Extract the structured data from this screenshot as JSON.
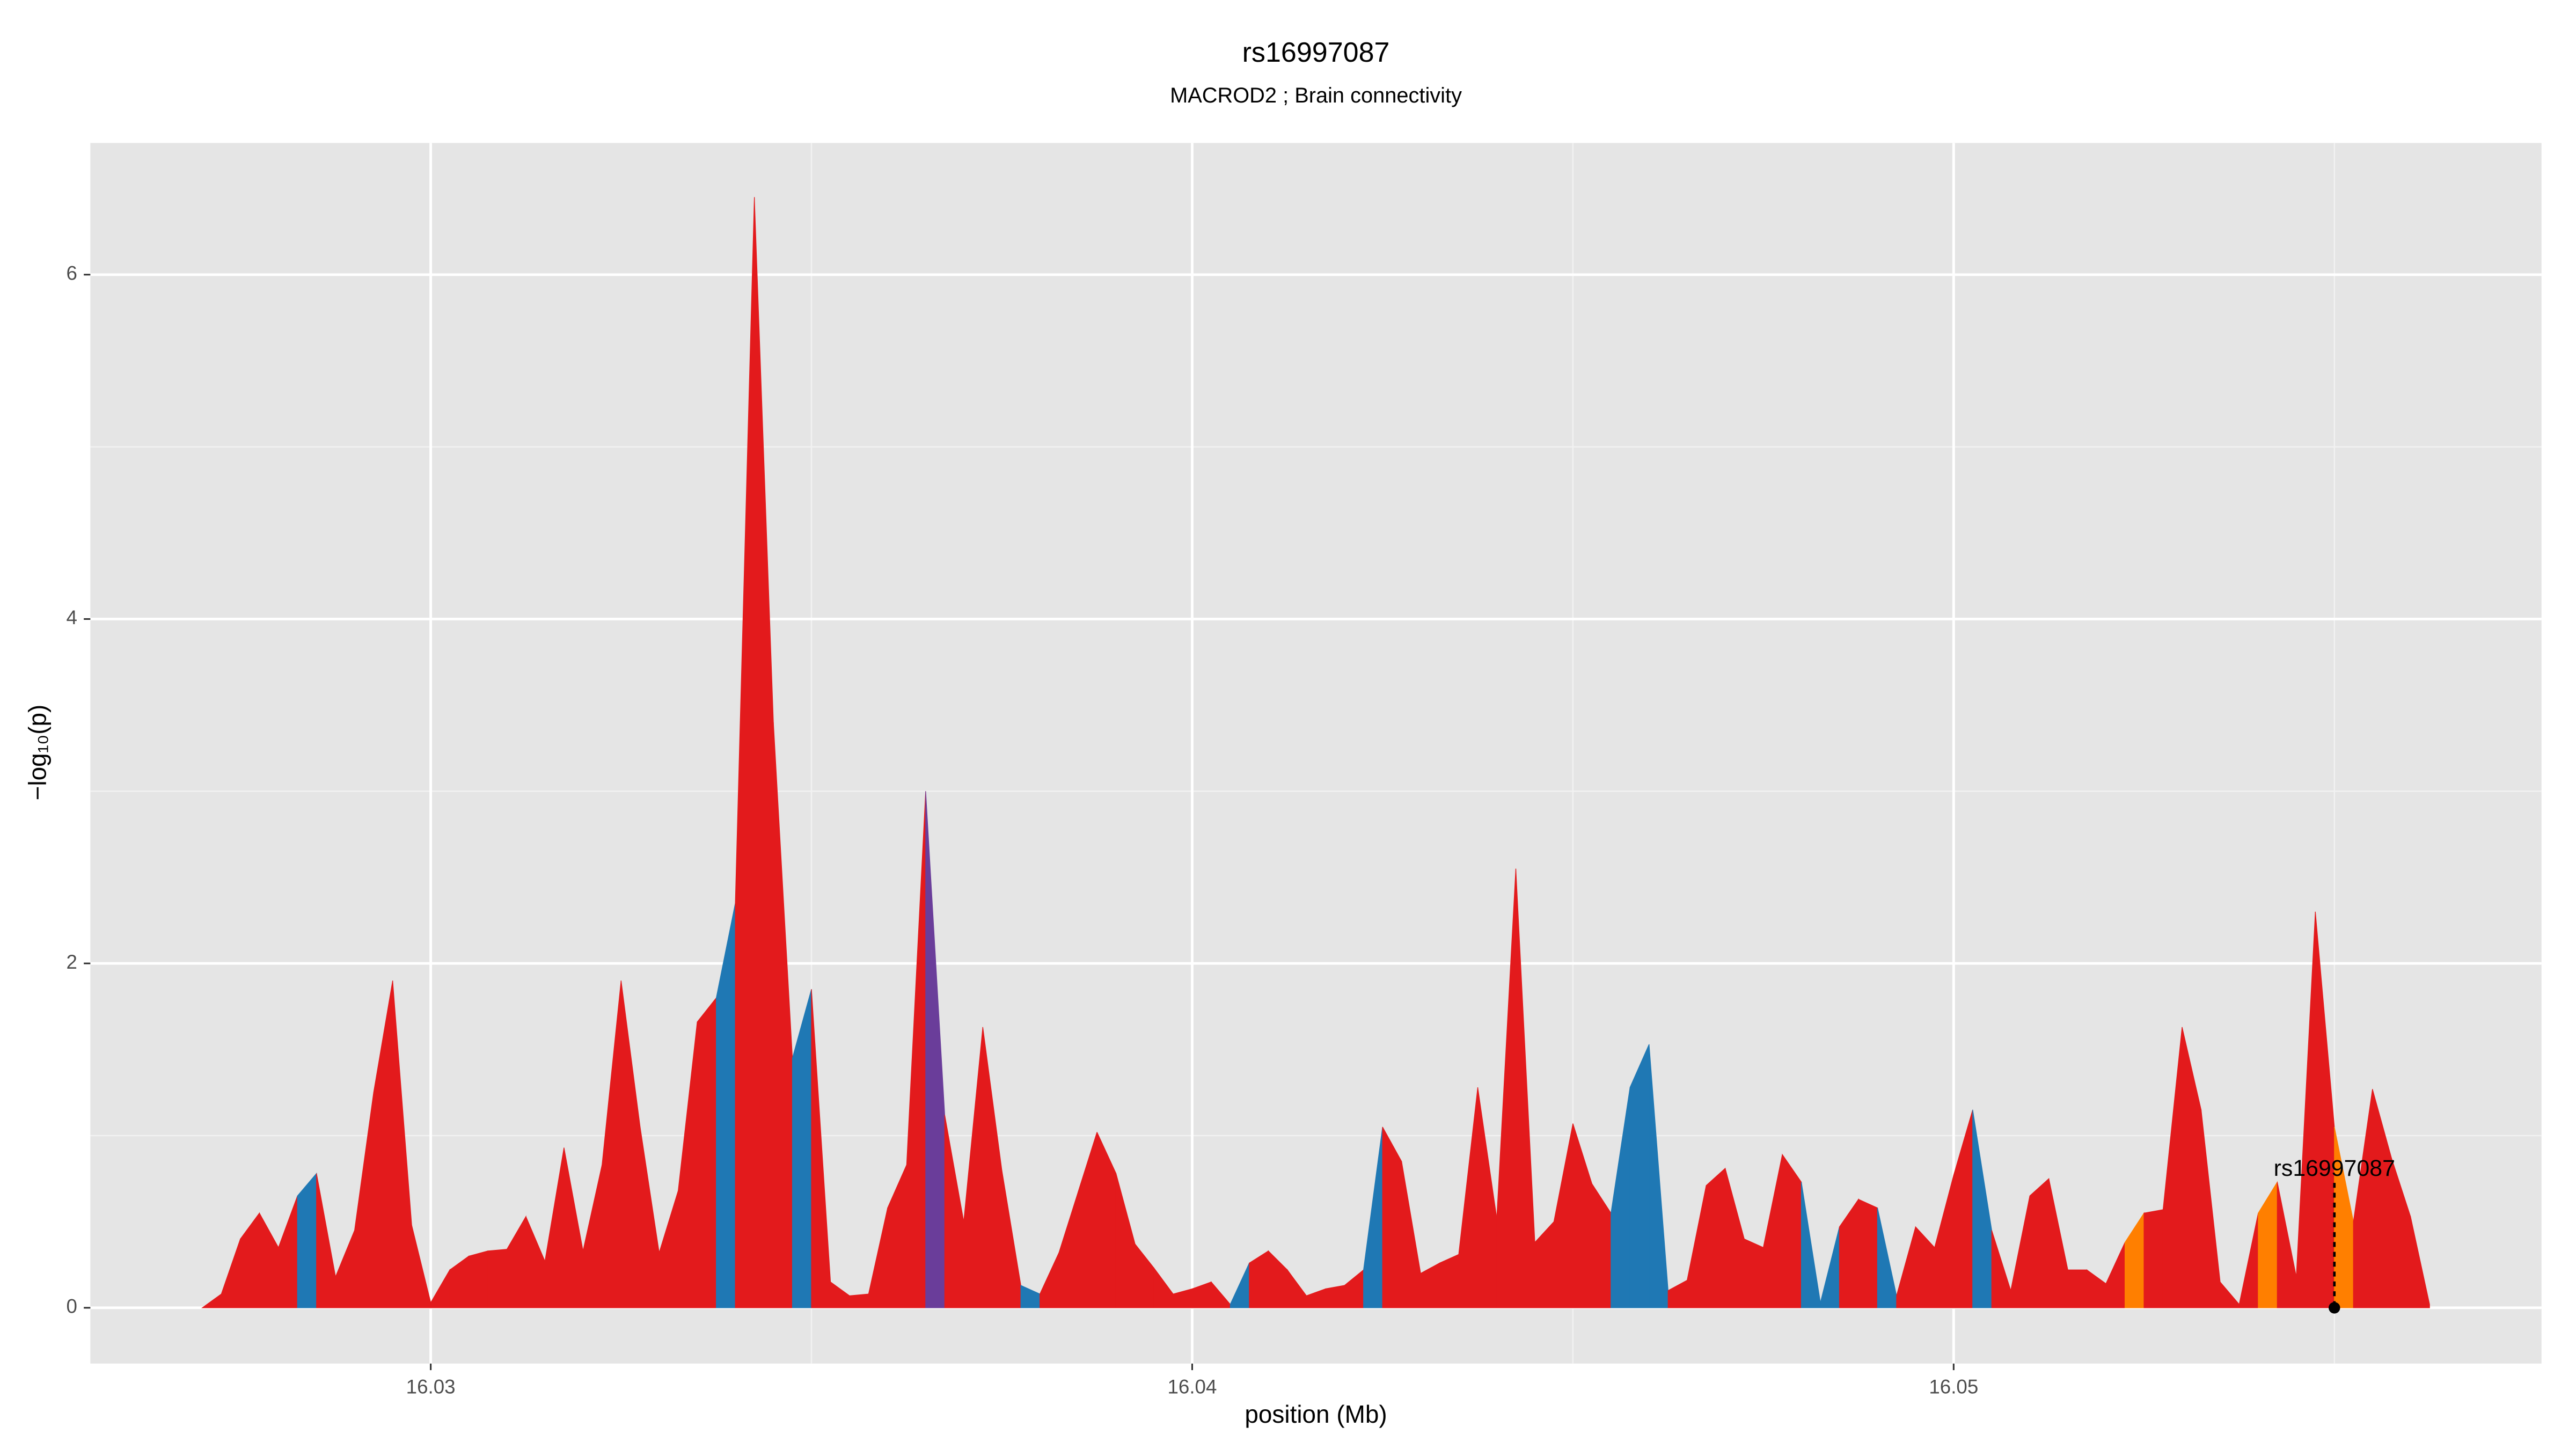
{
  "chart_data": {
    "type": "area",
    "title": "rs16997087",
    "subtitle": "MACROD2 ; Brain connectivity",
    "x_label": "position (Mb)",
    "y_label": "−log₁₀(p)",
    "x": [
      16.027,
      16.02725,
      16.0275,
      16.02775,
      16.028,
      16.02825,
      16.0285,
      16.02875,
      16.029,
      16.02925,
      16.0295,
      16.02975,
      16.03,
      16.03025,
      16.0305,
      16.03075,
      16.031,
      16.03125,
      16.0315,
      16.03175,
      16.032,
      16.03225,
      16.0325,
      16.03275,
      16.033,
      16.03325,
      16.0335,
      16.03375,
      16.034,
      16.03425,
      16.0345,
      16.03475,
      16.035,
      16.03525,
      16.0355,
      16.03575,
      16.036,
      16.03625,
      16.0365,
      16.03675,
      16.037,
      16.03725,
      16.0375,
      16.03775,
      16.038,
      16.03825,
      16.0385,
      16.03875,
      16.039,
      16.03925,
      16.0395,
      16.03975,
      16.04,
      16.04025,
      16.0405,
      16.04075,
      16.041,
      16.04125,
      16.0415,
      16.04175,
      16.042,
      16.04225,
      16.0425,
      16.04275,
      16.043,
      16.04325,
      16.0435,
      16.04375,
      16.044,
      16.04425,
      16.0445,
      16.04475,
      16.045,
      16.04525,
      16.0455,
      16.04575,
      16.046,
      16.04625,
      16.0465,
      16.04675,
      16.047,
      16.04725,
      16.0475,
      16.04775,
      16.048,
      16.04825,
      16.0485,
      16.04875,
      16.049,
      16.04925,
      16.0495,
      16.04975,
      16.05,
      16.05025,
      16.0505,
      16.05075,
      16.051,
      16.05125,
      16.0515,
      16.05175,
      16.052,
      16.05225,
      16.0525,
      16.05275,
      16.053,
      16.05325,
      16.0535,
      16.05375,
      16.054,
      16.05425,
      16.0545,
      16.05475,
      16.055,
      16.05525,
      16.0555,
      16.05575,
      16.056,
      16.05625
    ],
    "values": [
      0,
      0.08,
      0.4,
      0.55,
      0.35,
      0.65,
      0.78,
      0.18,
      0.45,
      1.25,
      1.9,
      0.48,
      0.03,
      0.22,
      0.3,
      0.33,
      0.34,
      0.53,
      0.27,
      0.93,
      0.33,
      0.83,
      1.9,
      1.05,
      0.32,
      0.68,
      1.66,
      1.8,
      2.35,
      6.45,
      3.4,
      1.45,
      1.85,
      0.15,
      0.07,
      0.08,
      0.58,
      0.83,
      3.0,
      1.12,
      0.5,
      1.63,
      0.8,
      0.13,
      0.08,
      0.32,
      0.67,
      1.02,
      0.78,
      0.37,
      0.23,
      0.08,
      0.11,
      0.15,
      0.02,
      0.26,
      0.33,
      0.22,
      0.07,
      0.11,
      0.13,
      0.22,
      1.05,
      0.85,
      0.2,
      0.26,
      0.31,
      1.28,
      0.52,
      2.55,
      0.38,
      0.5,
      1.07,
      0.72,
      0.55,
      1.28,
      1.53,
      0.1,
      0.16,
      0.71,
      0.81,
      0.4,
      0.35,
      0.89,
      0.73,
      0.03,
      0.47,
      0.63,
      0.58,
      0.07,
      0.47,
      0.35,
      0.77,
      1.15,
      0.45,
      0.1,
      0.65,
      0.75,
      0.22,
      0.22,
      0.14,
      0.38,
      0.55,
      0.57,
      1.63,
      1.15,
      0.15,
      0.02,
      0.55,
      0.73,
      0.18,
      2.3,
      1.05,
      0.5,
      1.27,
      0.87,
      0.53,
      0.02
    ],
    "segment_colors": [
      "#e31a1c",
      "#e31a1c",
      "#e31a1c",
      "#e31a1c",
      "#e31a1c",
      "#1f78b4",
      "#e31a1c",
      "#e31a1c",
      "#e31a1c",
      "#e31a1c",
      "#e31a1c",
      "#e31a1c",
      "#e31a1c",
      "#e31a1c",
      "#e31a1c",
      "#e31a1c",
      "#e31a1c",
      "#e31a1c",
      "#e31a1c",
      "#e31a1c",
      "#e31a1c",
      "#e31a1c",
      "#e31a1c",
      "#e31a1c",
      "#e31a1c",
      "#e31a1c",
      "#e31a1c",
      "#1f78b4",
      "#e31a1c",
      "#e31a1c",
      "#e31a1c",
      "#1f78b4",
      "#e31a1c",
      "#e31a1c",
      "#e31a1c",
      "#e31a1c",
      "#e31a1c",
      "#e31a1c",
      "#6a3d9a",
      "#e31a1c",
      "#e31a1c",
      "#e31a1c",
      "#e31a1c",
      "#1f78b4",
      "#e31a1c",
      "#e31a1c",
      "#e31a1c",
      "#e31a1c",
      "#e31a1c",
      "#e31a1c",
      "#e31a1c",
      "#e31a1c",
      "#e31a1c",
      "#e31a1c",
      "#1f78b4",
      "#e31a1c",
      "#e31a1c",
      "#e31a1c",
      "#e31a1c",
      "#e31a1c",
      "#e31a1c",
      "#1f78b4",
      "#e31a1c",
      "#e31a1c",
      "#e31a1c",
      "#e31a1c",
      "#e31a1c",
      "#e31a1c",
      "#e31a1c",
      "#e31a1c",
      "#e31a1c",
      "#e31a1c",
      "#e31a1c",
      "#e31a1c",
      "#1f78b4",
      "#1f78b4",
      "#1f78b4",
      "#e31a1c",
      "#e31a1c",
      "#e31a1c",
      "#e31a1c",
      "#e31a1c",
      "#e31a1c",
      "#e31a1c",
      "#1f78b4",
      "#1f78b4",
      "#e31a1c",
      "#e31a1c",
      "#1f78b4",
      "#e31a1c",
      "#e31a1c",
      "#e31a1c",
      "#e31a1c",
      "#1f78b4",
      "#e31a1c",
      "#e31a1c",
      "#e31a1c",
      "#e31a1c",
      "#e31a1c",
      "#e31a1c",
      "#e31a1c",
      "#ff7f00",
      "#e31a1c",
      "#e31a1c",
      "#e31a1c",
      "#e31a1c",
      "#e31a1c",
      "#e31a1c",
      "#ff7f00",
      "#e31a1c",
      "#e31a1c",
      "#e31a1c",
      "#ff7f00",
      "#e31a1c",
      "#e31a1c",
      "#e31a1c",
      "#e31a1c"
    ],
    "highlight": {
      "label": "rs16997087",
      "x": 16.055,
      "value": 0
    },
    "xlim": [
      16.02553,
      16.05772
    ],
    "ylim": [
      -0.324,
      6.765
    ],
    "xticks": [
      16.03,
      16.04,
      16.05
    ],
    "yticks": [
      0,
      2,
      4,
      6
    ],
    "minor_xticks": [
      16.035,
      16.045,
      16.055
    ],
    "minor_yticks": [
      1,
      3,
      5
    ],
    "grid": true
  }
}
